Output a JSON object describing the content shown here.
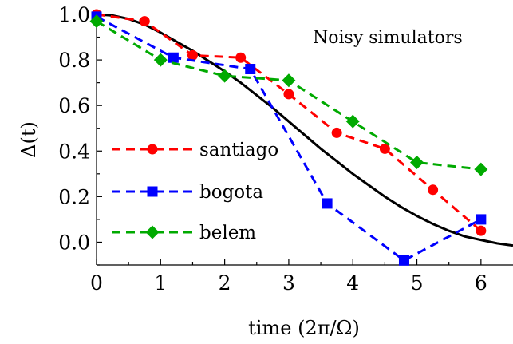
{
  "chart_data": {
    "type": "line",
    "annotation": "Noisy simulators",
    "xlabel": "time (2π/Ω)",
    "ylabel": "Δ(t)",
    "xlim": [
      0,
      6.5
    ],
    "ylim": [
      -0.1,
      1.0
    ],
    "x_ticks": [
      "0",
      "1",
      "2",
      "3",
      "4",
      "5",
      "6"
    ],
    "y_ticks": [
      "1.0",
      "0.8",
      "0.6",
      "0.4",
      "0.2",
      "0.0"
    ],
    "grid": false,
    "legend_position": "left",
    "theory": {
      "color": "#000000",
      "x": [
        0,
        0.25,
        0.5,
        0.75,
        1,
        1.25,
        1.5,
        1.75,
        2,
        2.25,
        2.5,
        2.75,
        3,
        3.25,
        3.5,
        3.75,
        4,
        4.25,
        4.5,
        4.75,
        5,
        5.25,
        5.5,
        5.75,
        6,
        6.25,
        6.5
      ],
      "y": [
        1.0,
        0.995,
        0.98,
        0.955,
        0.92,
        0.88,
        0.84,
        0.795,
        0.75,
        0.7,
        0.645,
        0.59,
        0.53,
        0.47,
        0.41,
        0.355,
        0.3,
        0.25,
        0.2,
        0.155,
        0.115,
        0.08,
        0.05,
        0.025,
        0.01,
        -0.005,
        -0.015
      ]
    },
    "series": [
      {
        "name": "santiago",
        "color": "#ff0000",
        "marker": "circle",
        "x": [
          0,
          0.75,
          1.5,
          2.25,
          3.0,
          3.75,
          4.5,
          5.25,
          6.0
        ],
        "y": [
          1.0,
          0.97,
          0.82,
          0.81,
          0.65,
          0.48,
          0.41,
          0.23,
          0.05
        ]
      },
      {
        "name": "bogota",
        "color": "#0000ff",
        "marker": "square",
        "x": [
          0,
          1.2,
          2.4,
          3.6,
          4.8,
          6.0
        ],
        "y": [
          0.99,
          0.81,
          0.76,
          0.17,
          -0.08,
          0.1
        ]
      },
      {
        "name": "belem",
        "color": "#00aa00",
        "marker": "diamond",
        "x": [
          0,
          1.0,
          2.0,
          3.0,
          4.0,
          5.0,
          6.0
        ],
        "y": [
          0.97,
          0.8,
          0.73,
          0.71,
          0.53,
          0.35,
          0.32
        ]
      }
    ]
  }
}
